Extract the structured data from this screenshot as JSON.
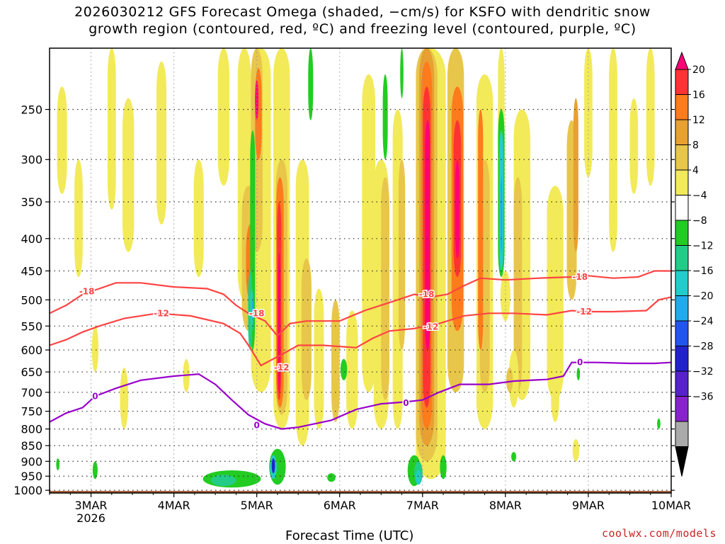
{
  "chart_data": {
    "type": "heatmap",
    "title_line1": "2026030212 GFS Forecast Omega (shaded, −cm/s) for KSFO with dendritic snow",
    "title_line2": "growth region (contoured, red, ºC) and freezing level (contoured, purple, ºC)",
    "xlabel": "Forecast Time (UTC)",
    "watermark": "coolwx.com/models",
    "x_range": [
      2.5,
      10.0
    ],
    "y_range_hpa": [
      200,
      1010
    ],
    "x_ticks": [
      {
        "x": 3,
        "label": "3MAR",
        "sublabel": "2026"
      },
      {
        "x": 4,
        "label": "4MAR",
        "sublabel": ""
      },
      {
        "x": 5,
        "label": "5MAR",
        "sublabel": ""
      },
      {
        "x": 6,
        "label": "6MAR",
        "sublabel": ""
      },
      {
        "x": 7,
        "label": "7MAR",
        "sublabel": ""
      },
      {
        "x": 8,
        "label": "8MAR",
        "sublabel": ""
      },
      {
        "x": 9,
        "label": "9MAR",
        "sublabel": ""
      },
      {
        "x": 10,
        "label": "10MAR",
        "sublabel": ""
      }
    ],
    "y_ticks": [
      250,
      300,
      350,
      400,
      450,
      500,
      550,
      600,
      650,
      700,
      750,
      800,
      850,
      900,
      950,
      1000
    ],
    "colorbar_labels": [
      "20",
      "16",
      "12",
      "8",
      "4",
      "−4",
      "−8",
      "−12",
      "−16",
      "−20",
      "−24",
      "−28",
      "−32",
      "−36"
    ],
    "colorbar_colors": [
      "#ff0077",
      "#ff3333",
      "#ff7b1b",
      "#e8a030",
      "#e8c64a",
      "#f2ea58",
      "#ffffff",
      "#22cc22",
      "#22cc88",
      "#22cccc",
      "#22aaee",
      "#2255ee",
      "#2222cc",
      "#5522cc",
      "#8822cc",
      "#aaaaaa",
      "#000000"
    ],
    "shading_colors": {
      "w4": "#f2ea58",
      "w8": "#e8c64a",
      "w12": "#e8a030",
      "w16": "#ff7b1b",
      "w20": "#ff3333",
      "w24": "#ff0077",
      "c4": "#22cc22",
      "c8": "#22cc88",
      "c12": "#22cccc",
      "c16": "#22aaee",
      "c20": "#2255ee",
      "c24": "#2222cc"
    },
    "ground_color": "#a0522d",
    "contour_colors": {
      "dgz": "#ff4444",
      "freezing": "#9900cc"
    },
    "contours": [
      {
        "name": "minus18",
        "label": "-18",
        "color": "dgz",
        "points": [
          [
            2.5,
            525
          ],
          [
            2.7,
            510
          ],
          [
            2.9,
            490
          ],
          [
            3.1,
            480
          ],
          [
            3.3,
            470
          ],
          [
            3.6,
            470
          ],
          [
            4.0,
            477
          ],
          [
            4.4,
            480
          ],
          [
            4.6,
            490
          ],
          [
            4.75,
            510
          ],
          [
            4.9,
            525
          ],
          [
            5.1,
            540
          ],
          [
            5.25,
            570
          ],
          [
            5.4,
            545
          ],
          [
            5.6,
            540
          ],
          [
            6.0,
            540
          ],
          [
            6.3,
            520
          ],
          [
            6.6,
            505
          ],
          [
            6.9,
            490
          ],
          [
            7.1,
            495
          ],
          [
            7.3,
            490
          ],
          [
            7.5,
            475
          ],
          [
            7.7,
            462
          ],
          [
            8.0,
            465
          ],
          [
            8.4,
            462
          ],
          [
            8.8,
            460
          ],
          [
            9.0,
            458
          ],
          [
            9.3,
            462
          ],
          [
            9.6,
            460
          ],
          [
            9.8,
            450
          ],
          [
            10.0,
            450
          ]
        ],
        "labels_at": [
          [
            2.95,
            485
          ],
          [
            5.0,
            525
          ],
          [
            7.05,
            490
          ],
          [
            8.9,
            460
          ]
        ]
      },
      {
        "name": "minus12",
        "label": "-12",
        "color": "dgz",
        "points": [
          [
            2.5,
            590
          ],
          [
            2.7,
            578
          ],
          [
            2.9,
            562
          ],
          [
            3.1,
            550
          ],
          [
            3.4,
            535
          ],
          [
            3.8,
            525
          ],
          [
            4.2,
            530
          ],
          [
            4.6,
            545
          ],
          [
            4.8,
            565
          ],
          [
            4.9,
            590
          ],
          [
            5.05,
            635
          ],
          [
            5.3,
            610
          ],
          [
            5.5,
            590
          ],
          [
            5.8,
            590
          ],
          [
            6.2,
            595
          ],
          [
            6.4,
            575
          ],
          [
            6.6,
            560
          ],
          [
            6.9,
            555
          ],
          [
            7.2,
            545
          ],
          [
            7.5,
            530
          ],
          [
            7.8,
            525
          ],
          [
            8.1,
            525
          ],
          [
            8.5,
            528
          ],
          [
            8.8,
            520
          ],
          [
            9.0,
            522
          ],
          [
            9.3,
            522
          ],
          [
            9.7,
            520
          ],
          [
            9.85,
            500
          ],
          [
            10.0,
            495
          ]
        ],
        "labels_at": [
          [
            3.85,
            525
          ],
          [
            5.3,
            640
          ],
          [
            7.1,
            552
          ],
          [
            8.95,
            522
          ]
        ]
      },
      {
        "name": "freezing0",
        "label": "0",
        "color": "freezing",
        "points": [
          [
            2.5,
            780
          ],
          [
            2.7,
            755
          ],
          [
            2.9,
            740
          ],
          [
            3.05,
            710
          ],
          [
            3.3,
            690
          ],
          [
            3.6,
            670
          ],
          [
            4.0,
            660
          ],
          [
            4.3,
            655
          ],
          [
            4.5,
            680
          ],
          [
            4.7,
            720
          ],
          [
            4.9,
            760
          ],
          [
            5.1,
            785
          ],
          [
            5.3,
            800
          ],
          [
            5.5,
            795
          ],
          [
            5.9,
            775
          ],
          [
            6.2,
            745
          ],
          [
            6.5,
            730
          ],
          [
            6.8,
            725
          ],
          [
            7.0,
            720
          ],
          [
            7.2,
            700
          ],
          [
            7.45,
            680
          ],
          [
            7.8,
            680
          ],
          [
            8.1,
            672
          ],
          [
            8.5,
            668
          ],
          [
            8.7,
            660
          ],
          [
            8.8,
            628
          ],
          [
            9.1,
            628
          ],
          [
            9.5,
            630
          ],
          [
            9.8,
            630
          ],
          [
            10.0,
            628
          ]
        ],
        "labels_at": [
          [
            3.05,
            710
          ],
          [
            5.0,
            790
          ],
          [
            6.8,
            728
          ],
          [
            8.9,
            628
          ]
        ]
      }
    ]
  }
}
